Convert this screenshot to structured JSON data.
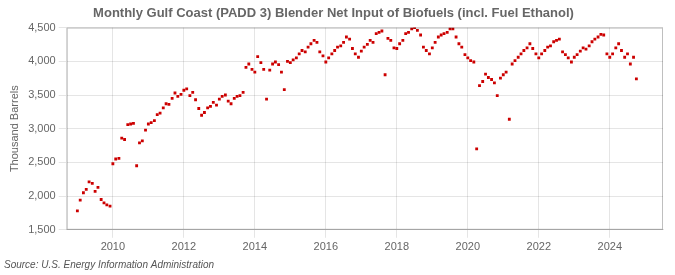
{
  "chart_data": {
    "type": "scatter",
    "title": "Monthly Gulf Coast (PADD 3) Blender Net Input of Biofuels (incl. Fuel Ethanol)",
    "ylabel": "Thousand Barrels",
    "annotations": [
      "Source: U.S. Energy Information Administration"
    ],
    "color": "#cc0000",
    "marker": "square",
    "grid": true,
    "xlim": [
      2008.7,
      2025.5
    ],
    "xticks": [
      2010,
      2012,
      2014,
      2016,
      2018,
      2020,
      2022,
      2024
    ],
    "ylim": [
      1500,
      4500
    ],
    "yticks": [
      {
        "value": 1500,
        "label": "1,500"
      },
      {
        "value": 2000,
        "label": "2,000"
      },
      {
        "value": 2500,
        "label": "2,500"
      },
      {
        "value": 3000,
        "label": "3,000"
      },
      {
        "value": 3500,
        "label": "3,500"
      },
      {
        "value": 4000,
        "label": "4,000"
      },
      {
        "value": 4500,
        "label": "4,500"
      }
    ],
    "x": [
      2009.0,
      2009.08,
      2009.17,
      2009.25,
      2009.33,
      2009.42,
      2009.5,
      2009.58,
      2009.67,
      2009.75,
      2009.83,
      2009.92,
      2010.0,
      2010.08,
      2010.17,
      2010.25,
      2010.33,
      2010.42,
      2010.5,
      2010.58,
      2010.67,
      2010.75,
      2010.83,
      2010.92,
      2011.0,
      2011.08,
      2011.17,
      2011.25,
      2011.33,
      2011.42,
      2011.5,
      2011.58,
      2011.67,
      2011.75,
      2011.83,
      2011.92,
      2012.0,
      2012.08,
      2012.17,
      2012.25,
      2012.33,
      2012.42,
      2012.5,
      2012.58,
      2012.67,
      2012.75,
      2012.83,
      2012.92,
      2013.0,
      2013.08,
      2013.17,
      2013.25,
      2013.33,
      2013.42,
      2013.5,
      2013.58,
      2013.67,
      2013.75,
      2013.83,
      2013.92,
      2014.0,
      2014.08,
      2014.17,
      2014.25,
      2014.33,
      2014.42,
      2014.5,
      2014.58,
      2014.67,
      2014.75,
      2014.83,
      2014.92,
      2015.0,
      2015.08,
      2015.17,
      2015.25,
      2015.33,
      2015.42,
      2015.5,
      2015.58,
      2015.67,
      2015.75,
      2015.83,
      2015.92,
      2016.0,
      2016.08,
      2016.17,
      2016.25,
      2016.33,
      2016.42,
      2016.5,
      2016.58,
      2016.67,
      2016.75,
      2016.83,
      2016.92,
      2017.0,
      2017.08,
      2017.17,
      2017.25,
      2017.33,
      2017.42,
      2017.5,
      2017.58,
      2017.67,
      2017.75,
      2017.83,
      2017.92,
      2018.0,
      2018.08,
      2018.17,
      2018.25,
      2018.33,
      2018.42,
      2018.5,
      2018.58,
      2018.67,
      2018.75,
      2018.83,
      2018.92,
      2019.0,
      2019.08,
      2019.17,
      2019.25,
      2019.33,
      2019.42,
      2019.5,
      2019.58,
      2019.67,
      2019.75,
      2019.83,
      2019.92,
      2020.0,
      2020.08,
      2020.17,
      2020.25,
      2020.33,
      2020.42,
      2020.5,
      2020.58,
      2020.67,
      2020.75,
      2020.83,
      2020.92,
      2021.0,
      2021.08,
      2021.17,
      2021.25,
      2021.33,
      2021.42,
      2021.5,
      2021.58,
      2021.67,
      2021.75,
      2021.83,
      2021.92,
      2022.0,
      2022.08,
      2022.17,
      2022.25,
      2022.33,
      2022.42,
      2022.5,
      2022.58,
      2022.67,
      2022.75,
      2022.83,
      2022.92,
      2023.0,
      2023.08,
      2023.17,
      2023.25,
      2023.33,
      2023.42,
      2023.5,
      2023.58,
      2023.67,
      2023.75,
      2023.83,
      2023.92,
      2024.0,
      2024.08,
      2024.17,
      2024.25,
      2024.33,
      2024.42,
      2024.5,
      2024.58,
      2024.67,
      2024.75
    ],
    "values": [
      1780,
      1940,
      2050,
      2100,
      2210,
      2190,
      2070,
      2130,
      1950,
      1900,
      1870,
      1850,
      2480,
      2550,
      2560,
      2860,
      2840,
      3060,
      3070,
      3080,
      2450,
      2790,
      2820,
      2980,
      3070,
      3090,
      3120,
      3210,
      3230,
      3310,
      3370,
      3360,
      3450,
      3530,
      3480,
      3510,
      3570,
      3590,
      3490,
      3540,
      3430,
      3300,
      3200,
      3240,
      3310,
      3330,
      3390,
      3350,
      3440,
      3480,
      3500,
      3410,
      3370,
      3450,
      3480,
      3490,
      3540,
      3910,
      3960,
      3880,
      3840,
      4070,
      3980,
      3880,
      3440,
      3870,
      3960,
      3990,
      3950,
      3840,
      3580,
      4000,
      3980,
      4020,
      4050,
      4110,
      4160,
      4140,
      4210,
      4260,
      4310,
      4280,
      4140,
      4080,
      3990,
      4050,
      4110,
      4160,
      4210,
      4230,
      4280,
      4360,
      4330,
      4190,
      4110,
      4060,
      4150,
      4210,
      4250,
      4310,
      4280,
      4410,
      4430,
      4450,
      3800,
      4340,
      4310,
      4200,
      4190,
      4260,
      4310,
      4410,
      4430,
      4480,
      4500,
      4460,
      4390,
      4210,
      4160,
      4110,
      4200,
      4280,
      4360,
      4390,
      4410,
      4430,
      4480,
      4480,
      4360,
      4260,
      4210,
      4100,
      4050,
      4010,
      3990,
      2700,
      3640,
      3700,
      3810,
      3760,
      3730,
      3680,
      3490,
      3750,
      3800,
      3840,
      3140,
      3960,
      4010,
      4060,
      4110,
      4160,
      4200,
      4260,
      4190,
      4110,
      4050,
      4110,
      4160,
      4210,
      4230,
      4290,
      4310,
      4330,
      4140,
      4100,
      4050,
      3990,
      4060,
      4100,
      4150,
      4200,
      4180,
      4230,
      4290,
      4330,
      4360,
      4400,
      4390,
      4110,
      4060,
      4110,
      4200,
      4260,
      4160,
      4060,
      4110,
      3960,
      4060,
      3740
    ]
  }
}
